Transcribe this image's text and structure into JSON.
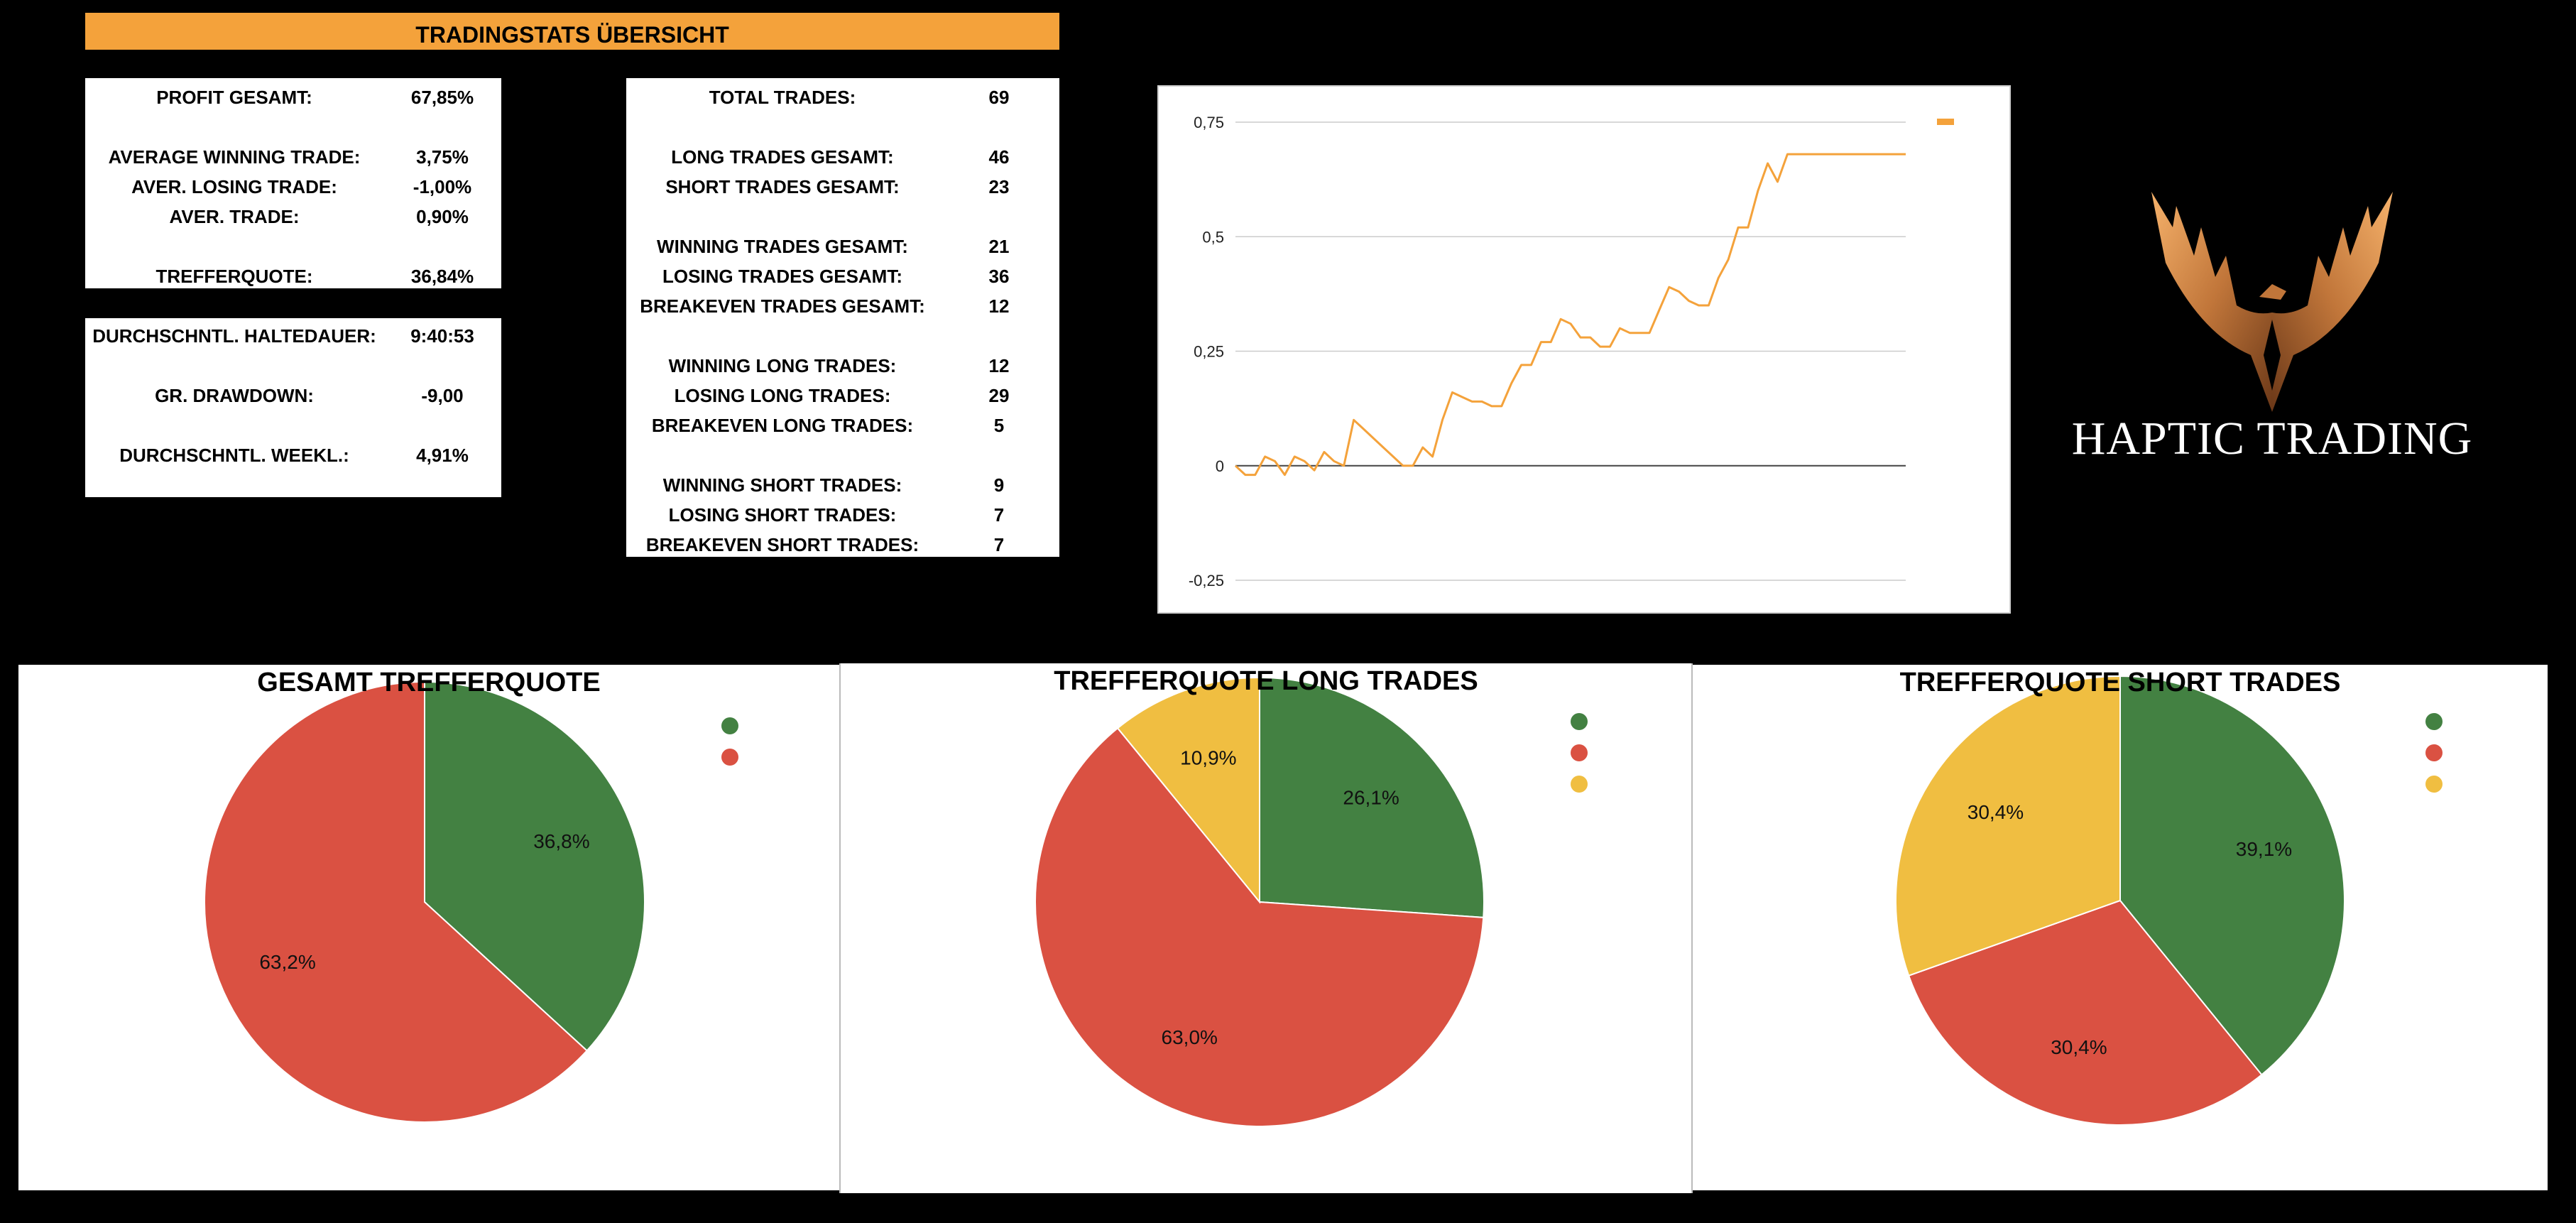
{
  "header": {
    "title": "TRADINGSTATS ÜBERSICHT"
  },
  "stats_a": [
    {
      "label": "PROFIT GESAMT:",
      "value": "67,85%"
    },
    {
      "label": "AVERAGE WINNING TRADE:",
      "value": "3,75%"
    },
    {
      "label": "AVER. LOSING TRADE:",
      "value": "-1,00%"
    },
    {
      "label": "AVER. TRADE:",
      "value": "0,90%"
    },
    {
      "label": "TREFFERQUOTE:",
      "value": "36,84%"
    }
  ],
  "stats_b": [
    {
      "label": "DURCHSCHNTL. HALTEDAUER:",
      "value": "9:40:53"
    },
    {
      "label": "GR. DRAWDOWN:",
      "value": "-9,00"
    },
    {
      "label": "DURCHSCHNTL. WEEKL.:",
      "value": "4,91%"
    }
  ],
  "stats_c": [
    {
      "label": "TOTAL TRADES:",
      "value": "69"
    },
    {
      "label": "LONG TRADES GESAMT:",
      "value": "46"
    },
    {
      "label": "SHORT TRADES GESAMT:",
      "value": "23"
    },
    {
      "label": "WINNING TRADES GESAMT:",
      "value": "21"
    },
    {
      "label": "LOSING TRADES GESAMT:",
      "value": "36"
    },
    {
      "label": "BREAKEVEN TRADES GESAMT:",
      "value": "12"
    },
    {
      "label": "WINNING LONG TRADES:",
      "value": "12"
    },
    {
      "label": "LOSING LONG TRADES:",
      "value": "29"
    },
    {
      "label": "BREAKEVEN LONG TRADES:",
      "value": "5"
    },
    {
      "label": "WINNING SHORT TRADES:",
      "value": "9"
    },
    {
      "label": "LOSING SHORT TRADES:",
      "value": "7"
    },
    {
      "label": "BREAKEVEN SHORT TRADES:",
      "value": "7"
    }
  ],
  "colors": {
    "accent": "#F4A23B",
    "win": "#438142",
    "loss": "#DA5142",
    "breakeven": "#F0BE41",
    "line": "#F4A23B"
  },
  "logo": {
    "text": "HAPTIC TRADING",
    "icon": "phoenix-icon"
  },
  "chart_data": [
    {
      "type": "line",
      "title": "",
      "xlabel": "",
      "ylabel": "",
      "ylim": [
        -0.25,
        0.75
      ],
      "yticks": [
        "0,75",
        "0,5",
        "0,25",
        "0",
        "-0,25"
      ],
      "ytick_values": [
        0.75,
        0.5,
        0.25,
        0,
        -0.25
      ],
      "grid": true,
      "legend": "top-right",
      "series": [
        {
          "values": [
            0,
            -0.02,
            -0.02,
            0.02,
            0.01,
            -0.02,
            0.02,
            0.01,
            -0.01,
            0.03,
            0.01,
            0,
            0.1,
            0.08,
            0.06,
            0.04,
            0.02,
            0,
            0,
            0.04,
            0.02,
            0.1,
            0.16,
            0.15,
            0.14,
            0.14,
            0.13,
            0.13,
            0.18,
            0.22,
            0.22,
            0.27,
            0.27,
            0.32,
            0.31,
            0.28,
            0.28,
            0.26,
            0.26,
            0.3,
            0.29,
            0.29,
            0.29,
            0.34,
            0.39,
            0.38,
            0.36,
            0.35,
            0.35,
            0.41,
            0.45,
            0.52,
            0.52,
            0.6,
            0.66,
            0.62,
            0.68,
            0.68,
            0.68,
            0.68,
            0.68,
            0.68,
            0.68,
            0.68,
            0.68,
            0.68,
            0.68,
            0.68,
            0.68
          ]
        }
      ]
    },
    {
      "type": "pie",
      "title": "GESAMT TREFFERQUOTE",
      "legend": "top-right",
      "slices": [
        {
          "label": "36,8%",
          "value": 36.8,
          "color": "#438142"
        },
        {
          "label": "63,2%",
          "value": 63.2,
          "color": "#DA5142"
        }
      ]
    },
    {
      "type": "pie",
      "title": "TREFFERQUOTE LONG TRADES",
      "legend": "top-right",
      "slices": [
        {
          "label": "26,1%",
          "value": 26.1,
          "color": "#438142"
        },
        {
          "label": "63,0%",
          "value": 63.0,
          "color": "#DA5142"
        },
        {
          "label": "10,9%",
          "value": 10.9,
          "color": "#F0BE41"
        }
      ]
    },
    {
      "type": "pie",
      "title": "TREFFERQUOTE SHORT TRADES",
      "legend": "top-right",
      "slices": [
        {
          "label": "39,1%",
          "value": 39.1,
          "color": "#438142"
        },
        {
          "label": "30,4%",
          "value": 30.4,
          "color": "#DA5142"
        },
        {
          "label": "30,4%",
          "value": 30.4,
          "color": "#F0BE41"
        }
      ]
    }
  ]
}
